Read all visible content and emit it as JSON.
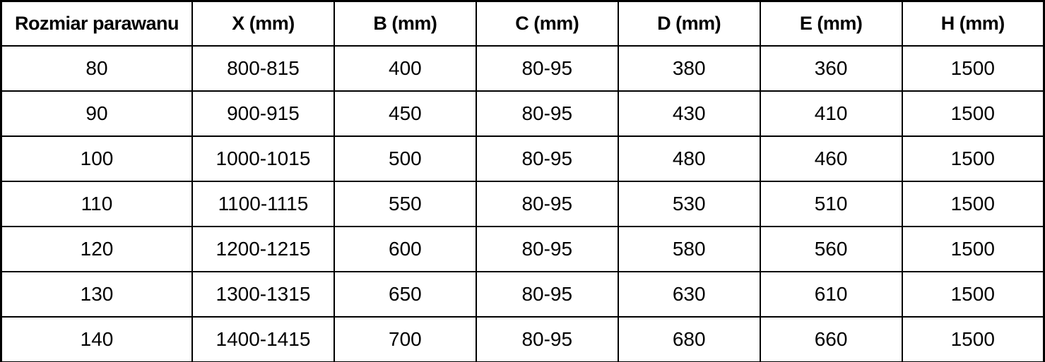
{
  "table": {
    "columns": [
      "Rozmiar parawanu",
      "X (mm)",
      "B (mm)",
      "C (mm)",
      "D (mm)",
      "E (mm)",
      "H (mm)"
    ],
    "rows": [
      [
        "80",
        "800-815",
        "400",
        "80-95",
        "380",
        "360",
        "1500"
      ],
      [
        "90",
        "900-915",
        "450",
        "80-95",
        "430",
        "410",
        "1500"
      ],
      [
        "100",
        "1000-1015",
        "500",
        "80-95",
        "480",
        "460",
        "1500"
      ],
      [
        "110",
        "1100-1115",
        "550",
        "80-95",
        "530",
        "510",
        "1500"
      ],
      [
        "120",
        "1200-1215",
        "600",
        "80-95",
        "580",
        "560",
        "1500"
      ],
      [
        "130",
        "1300-1315",
        "650",
        "80-95",
        "630",
        "610",
        "1500"
      ],
      [
        "140",
        "1400-1415",
        "700",
        "80-95",
        "680",
        "660",
        "1500"
      ]
    ]
  },
  "colors": {
    "border": "#000000",
    "text": "#000000",
    "background": "#ffffff"
  },
  "chart_data": {
    "type": "table",
    "title": "",
    "columns": [
      "Rozmiar parawanu",
      "X (mm)",
      "B (mm)",
      "C (mm)",
      "D (mm)",
      "E (mm)",
      "H (mm)"
    ],
    "rows": [
      [
        "80",
        "800-815",
        "400",
        "80-95",
        "380",
        "360",
        "1500"
      ],
      [
        "90",
        "900-915",
        "450",
        "80-95",
        "430",
        "410",
        "1500"
      ],
      [
        "100",
        "1000-1015",
        "500",
        "80-95",
        "480",
        "460",
        "1500"
      ],
      [
        "110",
        "1100-1115",
        "550",
        "80-95",
        "530",
        "510",
        "1500"
      ],
      [
        "120",
        "1200-1215",
        "600",
        "80-95",
        "580",
        "560",
        "1500"
      ],
      [
        "130",
        "1300-1315",
        "650",
        "80-95",
        "630",
        "610",
        "1500"
      ],
      [
        "140",
        "1400-1415",
        "700",
        "80-95",
        "680",
        "660",
        "1500"
      ]
    ],
    "layout": {
      "grid": true,
      "header_bold": true,
      "text_align": "center"
    }
  }
}
